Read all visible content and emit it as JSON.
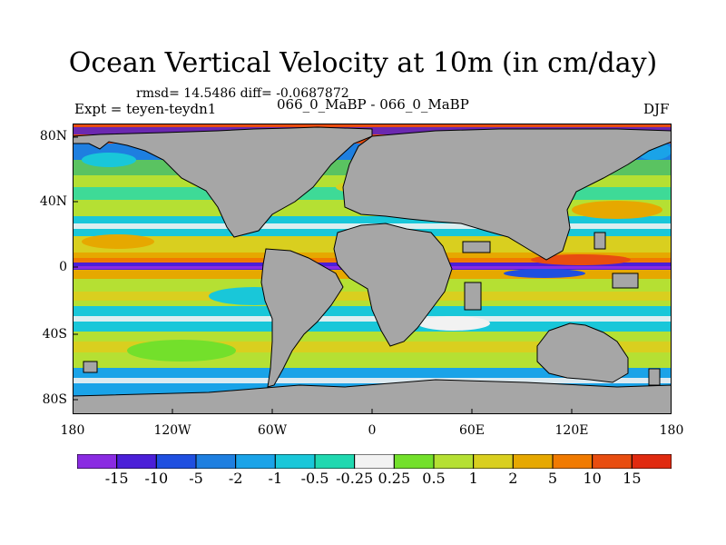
{
  "title": "Ocean Vertical Velocity at 10m (in cm/day)",
  "stats": "rmsd= 14.5486 diff= -0.0687872",
  "subtitle": "066_0_MaBP - 066_0_MaBP",
  "experiment": "Expt = teyen-teydn1",
  "season": "DJF",
  "map": {
    "y_axis_labels": [
      "80N",
      "40N",
      "0",
      "40S",
      "80S"
    ],
    "x_axis_labels": [
      "180",
      "120W",
      "60W",
      "0",
      "60E",
      "120E",
      "180"
    ],
    "land_color": "#a6a6a6"
  },
  "colorbar": {
    "labels": [
      "-15",
      "-10",
      "-5",
      "-2",
      "-1",
      "-0.5",
      "-0.25",
      "0.25",
      "0.5",
      "1",
      "2",
      "5",
      "10",
      "15"
    ],
    "colors": [
      "#8a2be2",
      "#4b1fd8",
      "#1f4fe0",
      "#1e7fe0",
      "#1aa3e8",
      "#19c7d9",
      "#20d8b0",
      "#f2f2f2",
      "#73e02b",
      "#b5e033",
      "#d9cf1f",
      "#e6a800",
      "#f07a00",
      "#e84d10",
      "#e02a10"
    ]
  }
}
